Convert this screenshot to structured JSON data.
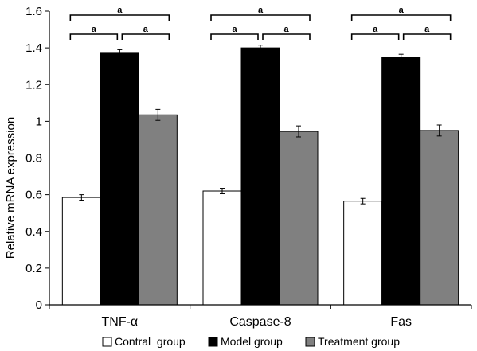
{
  "chart_data": {
    "type": "bar",
    "title": "",
    "xlabel": "",
    "ylabel": "Relative mRNA expression",
    "ylim": [
      0,
      1.6
    ],
    "yticks": [
      "0",
      "0.2",
      "0.4",
      "0.6",
      "0.8",
      "1",
      "1.2",
      "1.4",
      "1.6"
    ],
    "categories": [
      "TNF-α",
      "Caspase-8",
      "Fas"
    ],
    "series": [
      {
        "name": "Contral  group",
        "color": "#ffffff",
        "values": [
          0.585,
          0.62,
          0.565
        ],
        "errors": [
          0.015,
          0.015,
          0.015
        ]
      },
      {
        "name": "Model group",
        "color": "#000000",
        "values": [
          1.375,
          1.4,
          1.35
        ],
        "errors": [
          0.015,
          0.015,
          0.015
        ]
      },
      {
        "name": "Treatment group",
        "color": "#808080",
        "values": [
          1.035,
          0.945,
          0.95
        ],
        "errors": [
          0.03,
          0.03,
          0.03
        ]
      }
    ],
    "significance_label": "a",
    "significance_pairs": [
      [
        0,
        2
      ],
      [
        0,
        1
      ],
      [
        1,
        2
      ]
    ],
    "legend_position": "bottom",
    "grid": false
  }
}
